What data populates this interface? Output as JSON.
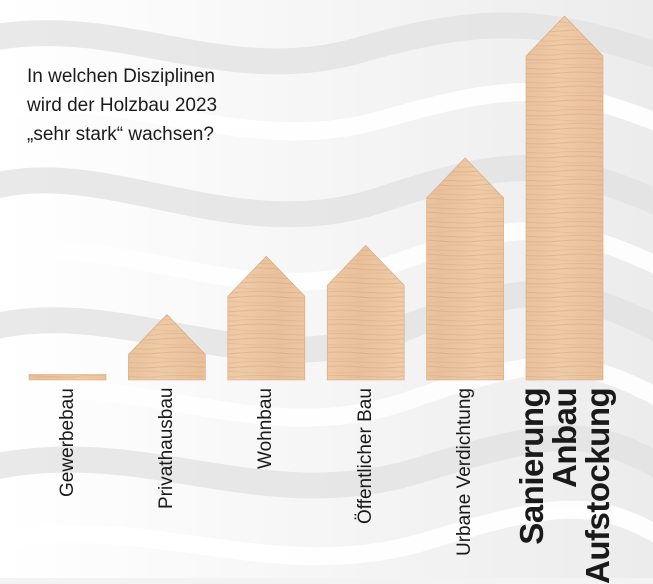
{
  "title_lines": [
    "In welchen Disziplinen",
    "wird der Holzbau 2023",
    "„sehr stark“ wachsen?"
  ],
  "colors": {
    "background": "#f3f3f3",
    "wood_light": "#efcba8",
    "wood_dark": "#d9a87b",
    "text": "#1a1a1a"
  },
  "chart_data": {
    "type": "bar",
    "title": "In welchen Disziplinen wird der Holzbau 2023 „sehr stark“ wachsen?",
    "categories": [
      [
        "Gewerbebau"
      ],
      [
        "Privathausbau"
      ],
      [
        "Wohnbau"
      ],
      [
        "Öffentlicher Bau"
      ],
      [
        "Urbane Verdichtung"
      ],
      [
        "Sanierung",
        "Anbau",
        "Aufstockung"
      ]
    ],
    "values": [
      1.5,
      18,
      34,
      37,
      61,
      100
    ],
    "highlight_index": 5,
    "value_unit": "relative",
    "ylim": [
      0,
      100
    ],
    "bar_shape": "house",
    "grid": false,
    "legend": "none"
  }
}
